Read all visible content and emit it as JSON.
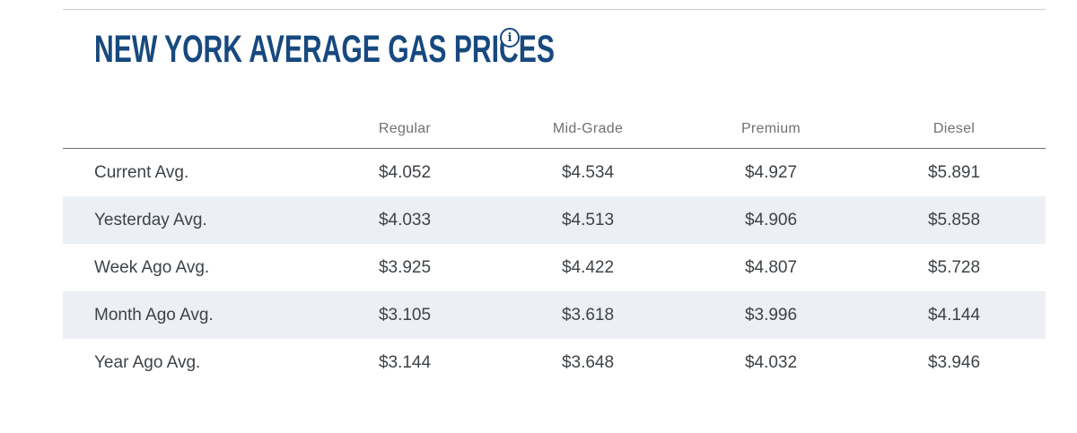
{
  "page": {
    "title": "NEW YORK AVERAGE GAS PRICES",
    "info_icon_glyph": "i"
  },
  "colors": {
    "brand_blue": "#17497F",
    "stripe_row": "#ECF0F5",
    "header_text": "#6E7276",
    "body_text": "#3E4347",
    "top_rule": "#C9CBCD",
    "header_rule": "#6D6E70"
  },
  "table": {
    "columns": [
      "Regular",
      "Mid-Grade",
      "Premium",
      "Diesel"
    ],
    "rows": [
      {
        "label": "Current Avg.",
        "values": [
          "$4.052",
          "$4.534",
          "$4.927",
          "$5.891"
        ]
      },
      {
        "label": "Yesterday Avg.",
        "values": [
          "$4.033",
          "$4.513",
          "$4.906",
          "$5.858"
        ]
      },
      {
        "label": "Week Ago Avg.",
        "values": [
          "$3.925",
          "$4.422",
          "$4.807",
          "$5.728"
        ]
      },
      {
        "label": "Month Ago Avg.",
        "values": [
          "$3.105",
          "$3.618",
          "$3.996",
          "$4.144"
        ]
      },
      {
        "label": "Year Ago Avg.",
        "values": [
          "$3.144",
          "$3.648",
          "$4.032",
          "$3.946"
        ]
      }
    ]
  }
}
